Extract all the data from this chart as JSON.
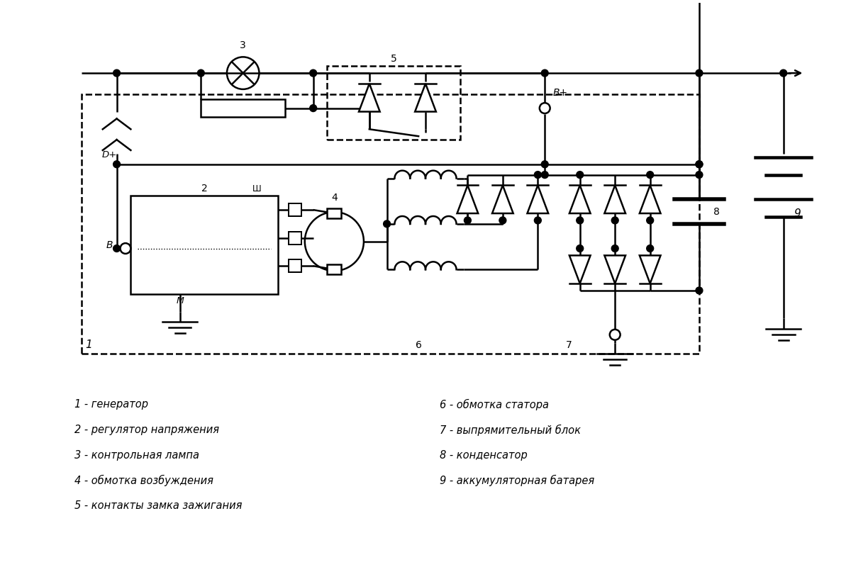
{
  "bg_color": "#ffffff",
  "line_color": "#000000",
  "lw": 1.8,
  "legend_col1": [
    "1 - генератор",
    "2 - регулятор напряжения",
    "3 - контрольная лампа",
    "4 - обмотка возбуждения",
    "5 - контакты замка зажигания"
  ],
  "legend_col2": [
    "6 - обмотка статора",
    "7 - выпрямительный блок",
    "8 - конденсатор",
    "9 - аккумуляторная батарея"
  ]
}
